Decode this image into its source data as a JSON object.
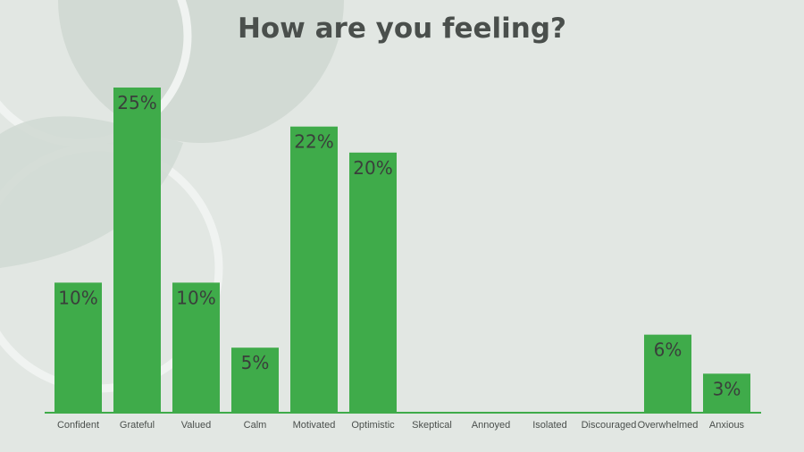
{
  "colors": {
    "background": "#e2e7e3",
    "bar": "#3fab4a",
    "axis": "#3fab4a",
    "decoration": "#d0d8d2"
  },
  "chart_data": {
    "type": "bar",
    "title": "How are you feeling?",
    "categories": [
      "Confident",
      "Grateful",
      "Valued",
      "Calm",
      "Motivated",
      "Optimistic",
      "Skeptical",
      "Annoyed",
      "Isolated",
      "Discouraged",
      "Overwhelmed",
      "Anxious"
    ],
    "values": [
      10,
      25,
      10,
      5,
      22,
      20,
      0,
      0,
      0,
      0,
      6,
      3
    ],
    "value_labels": [
      "10%",
      "25%",
      "10%",
      "5%",
      "22%",
      "20%",
      "",
      "",
      "",
      "",
      "6%",
      "3%"
    ],
    "unit": "%",
    "xlabel": "",
    "ylabel": "",
    "ylim": [
      0,
      25
    ],
    "grid": false,
    "legend": "none"
  }
}
